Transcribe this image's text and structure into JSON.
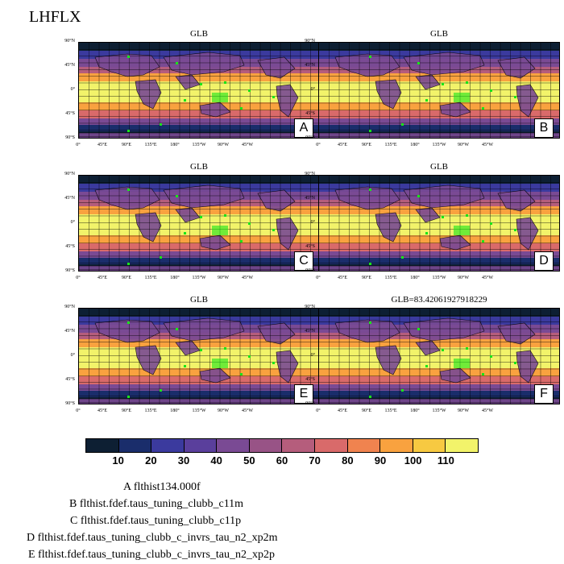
{
  "title": "LHFLX",
  "panels": [
    {
      "title": "GLB",
      "letter": "A"
    },
    {
      "title": "GLB",
      "letter": "B"
    },
    {
      "title": "GLB",
      "letter": "C"
    },
    {
      "title": "GLB",
      "letter": "D"
    },
    {
      "title": "GLB",
      "letter": "E"
    },
    {
      "title": "GLB=83.42061927918229",
      "letter": "F"
    }
  ],
  "lat_ticks": [
    "90°N",
    "45°N",
    "0°",
    "45°S",
    "90°S"
  ],
  "lon_ticks": [
    "0°",
    "45°E",
    "90°E",
    "135°E",
    "180°",
    "135°W",
    "90°W",
    "45°W"
  ],
  "colorbar": {
    "colors": [
      "#0d1f33",
      "#1a2d6b",
      "#3b3a9e",
      "#5a3f9c",
      "#7a4a94",
      "#985386",
      "#b55d7c",
      "#d96a6a",
      "#f0834f",
      "#f9a23f",
      "#f7c941",
      "#f2f36a"
    ],
    "labels": [
      "10",
      "20",
      "30",
      "40",
      "50",
      "60",
      "70",
      "80",
      "90",
      "100",
      "110"
    ]
  },
  "legend": [
    "A  flthist134.000f",
    "B  flthist.fdef.taus_tuning_clubb_c11m",
    "C  flthist.fdef.taus_tuning_clubb_c11p",
    "D  flthist.fdef.taus_tuning_clubb_c_invrs_tau_n2_xp2m",
    "E  flthist.fdef.taus_tuning_clubb_c_invrs_tau_n2_xp2p"
  ]
}
